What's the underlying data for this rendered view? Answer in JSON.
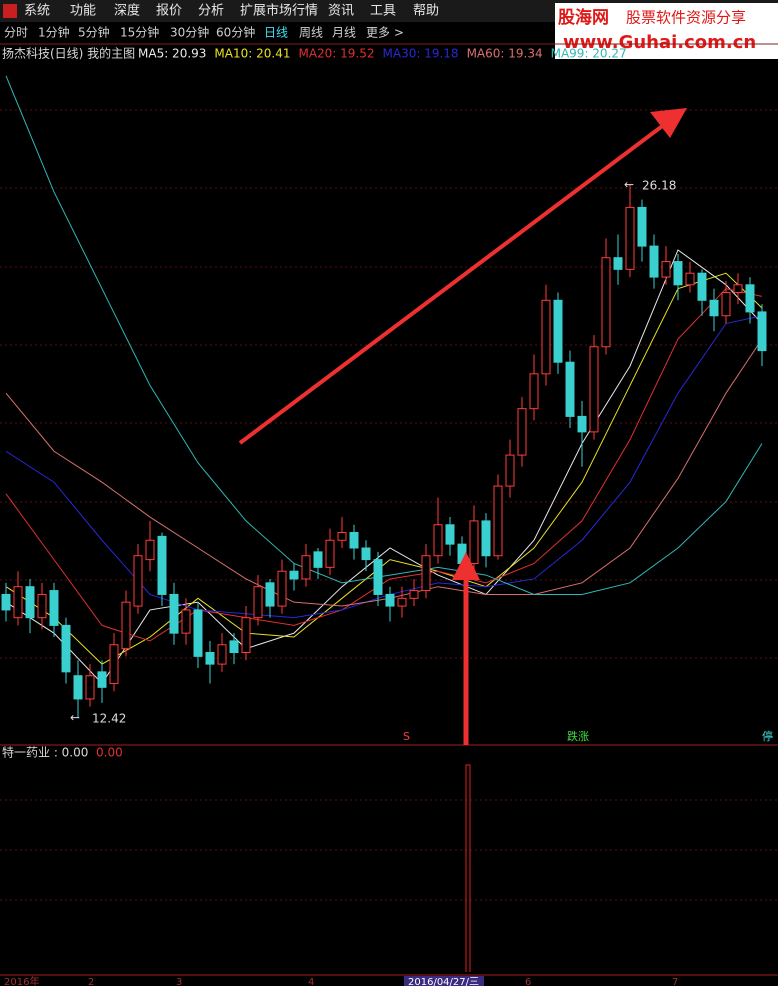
{
  "menu": [
    "系统",
    "功能",
    "深度",
    "报价",
    "分析",
    "扩展市场行情",
    "资讯",
    "工具",
    "帮助"
  ],
  "watermark": {
    "brand": "股海网",
    "slogan": "股票软件资源分享",
    "url": "www.Guhai.com.cn"
  },
  "tabs": [
    "分时",
    "1分钟",
    "5分钟",
    "15分钟",
    "30分钟",
    "60分钟",
    "日线",
    "周线",
    "月线",
    "更多 >"
  ],
  "chart_data": {
    "type": "candlestick",
    "title": "扬杰科技(日线) 我的主图",
    "ylim": [
      11.71,
      29.15
    ],
    "ohlc": [
      [
        15.6,
        15.9,
        14.9,
        15.2
      ],
      [
        15.0,
        16.2,
        14.8,
        15.8
      ],
      [
        15.8,
        16.0,
        14.6,
        15.0
      ],
      [
        15.0,
        15.9,
        14.7,
        15.6
      ],
      [
        15.7,
        15.9,
        14.5,
        14.8
      ],
      [
        14.8,
        15.0,
        13.3,
        13.6
      ],
      [
        13.5,
        13.9,
        12.42,
        12.9
      ],
      [
        12.9,
        13.8,
        12.7,
        13.5
      ],
      [
        13.6,
        13.9,
        12.8,
        13.2
      ],
      [
        13.3,
        14.6,
        13.1,
        14.3
      ],
      [
        14.2,
        15.7,
        14.0,
        15.4
      ],
      [
        15.3,
        16.9,
        15.1,
        16.6
      ],
      [
        16.5,
        17.5,
        16.2,
        17.0
      ],
      [
        17.1,
        17.2,
        15.3,
        15.6
      ],
      [
        15.6,
        15.9,
        14.3,
        14.6
      ],
      [
        14.6,
        15.5,
        14.3,
        15.2
      ],
      [
        15.2,
        15.4,
        13.7,
        14.0
      ],
      [
        14.1,
        14.4,
        13.3,
        13.8
      ],
      [
        13.8,
        14.6,
        13.6,
        14.3
      ],
      [
        14.4,
        14.6,
        13.8,
        14.1
      ],
      [
        14.1,
        15.3,
        13.9,
        15.0
      ],
      [
        15.0,
        16.1,
        14.8,
        15.8
      ],
      [
        15.9,
        16.0,
        15.0,
        15.3
      ],
      [
        15.3,
        16.5,
        15.1,
        16.2
      ],
      [
        16.2,
        16.4,
        15.7,
        16.0
      ],
      [
        16.0,
        16.9,
        15.8,
        16.6
      ],
      [
        16.7,
        16.8,
        16.0,
        16.3
      ],
      [
        16.3,
        17.3,
        16.1,
        17.0
      ],
      [
        17.0,
        17.6,
        16.8,
        17.2
      ],
      [
        17.2,
        17.4,
        16.5,
        16.8
      ],
      [
        16.8,
        17.0,
        16.2,
        16.5
      ],
      [
        16.5,
        16.7,
        15.3,
        15.6
      ],
      [
        15.6,
        15.8,
        14.9,
        15.3
      ],
      [
        15.3,
        15.8,
        15.0,
        15.5
      ],
      [
        15.5,
        16.0,
        15.3,
        15.7
      ],
      [
        15.7,
        16.9,
        15.5,
        16.6
      ],
      [
        16.6,
        18.1,
        16.4,
        17.4
      ],
      [
        17.4,
        17.6,
        16.6,
        16.9
      ],
      [
        16.9,
        17.1,
        16.0,
        16.4
      ],
      [
        16.4,
        17.9,
        16.2,
        17.5
      ],
      [
        17.5,
        17.7,
        16.3,
        16.6
      ],
      [
        16.6,
        18.7,
        16.5,
        18.4
      ],
      [
        18.4,
        19.6,
        18.1,
        19.2
      ],
      [
        19.2,
        20.7,
        18.9,
        20.4
      ],
      [
        20.4,
        21.8,
        20.1,
        21.3
      ],
      [
        21.3,
        23.6,
        21.0,
        23.2
      ],
      [
        23.2,
        23.4,
        21.3,
        21.6
      ],
      [
        21.6,
        21.9,
        19.9,
        20.2
      ],
      [
        20.2,
        20.6,
        18.9,
        19.8
      ],
      [
        19.8,
        22.3,
        19.6,
        22.0
      ],
      [
        22.0,
        24.8,
        21.8,
        24.3
      ],
      [
        24.3,
        24.9,
        23.6,
        24.0
      ],
      [
        24.0,
        26.18,
        23.8,
        25.6
      ],
      [
        25.6,
        25.8,
        24.2,
        24.6
      ],
      [
        24.6,
        24.9,
        23.5,
        23.8
      ],
      [
        23.8,
        24.6,
        23.6,
        24.2
      ],
      [
        24.2,
        24.4,
        23.2,
        23.6
      ],
      [
        23.6,
        24.2,
        23.4,
        23.9
      ],
      [
        23.9,
        24.0,
        22.8,
        23.2
      ],
      [
        23.2,
        23.5,
        22.4,
        22.8
      ],
      [
        22.8,
        23.7,
        22.6,
        23.4
      ],
      [
        23.4,
        23.9,
        23.1,
        23.6
      ],
      [
        23.6,
        23.8,
        22.6,
        22.9
      ],
      [
        22.9,
        23.1,
        21.5,
        21.9
      ]
    ],
    "up_color": "#ff3c3c",
    "down_color": "#3ad0d0",
    "ma_x": [
      0,
      4,
      8,
      12,
      16,
      20,
      24,
      28,
      32,
      36,
      40,
      44,
      48,
      52,
      56,
      60,
      63
    ],
    "series": [
      {
        "name": "MA5",
        "legend": "MA5: 20.93",
        "color": "#e8e8e8",
        "values": [
          15.4,
          14.6,
          13.3,
          15.2,
          15.4,
          14.2,
          14.6,
          15.8,
          16.8,
          16.1,
          15.6,
          17.0,
          19.5,
          21.5,
          24.5,
          23.6,
          22.6
        ]
      },
      {
        "name": "MA10",
        "legend": "MA10: 20.41",
        "color": "#e8e020",
        "values": [
          15.8,
          15.0,
          13.8,
          14.5,
          15.5,
          14.6,
          14.5,
          15.5,
          16.5,
          16.2,
          15.8,
          16.8,
          18.5,
          21.0,
          23.5,
          23.9,
          23.0
        ]
      },
      {
        "name": "MA20",
        "legend": "MA20: 19.52",
        "color": "#e03030",
        "values": [
          18.2,
          16.5,
          14.8,
          14.4,
          15.2,
          15.0,
          14.8,
          15.2,
          16.0,
          16.2,
          15.9,
          16.4,
          17.5,
          19.6,
          22.2,
          23.5,
          23.3
        ]
      },
      {
        "name": "MA30",
        "legend": "MA30: 19.18",
        "color": "#2828d8",
        "values": [
          19.3,
          18.5,
          17.0,
          15.6,
          15.2,
          15.1,
          15.0,
          15.2,
          15.6,
          15.9,
          15.8,
          16.0,
          17.0,
          18.5,
          20.8,
          22.6,
          22.8
        ]
      },
      {
        "name": "MA60",
        "legend": "MA60: 19.34",
        "color": "#d87070",
        "values": [
          20.8,
          19.3,
          18.5,
          17.6,
          16.8,
          16.0,
          15.4,
          15.3,
          15.5,
          15.8,
          15.6,
          15.6,
          15.9,
          16.8,
          18.6,
          20.8,
          22.2
        ]
      },
      {
        "name": "MA99",
        "legend": "MA99: 20.27",
        "color": "#30b8b8",
        "values": [
          29.0,
          26.0,
          23.5,
          21.0,
          19.0,
          17.5,
          16.4,
          15.9,
          16.1,
          16.3,
          16.1,
          15.6,
          15.6,
          15.9,
          16.8,
          18.0,
          19.5
        ]
      }
    ],
    "markers": [
      "S",
      "跌涨",
      "停"
    ]
  },
  "indicator": {
    "name": "特一药业 : 0.00",
    "value": "0.00"
  },
  "x_labels": [
    "2016年",
    "2",
    "3",
    "4",
    "2016/04/27/三",
    "6",
    "7"
  ]
}
